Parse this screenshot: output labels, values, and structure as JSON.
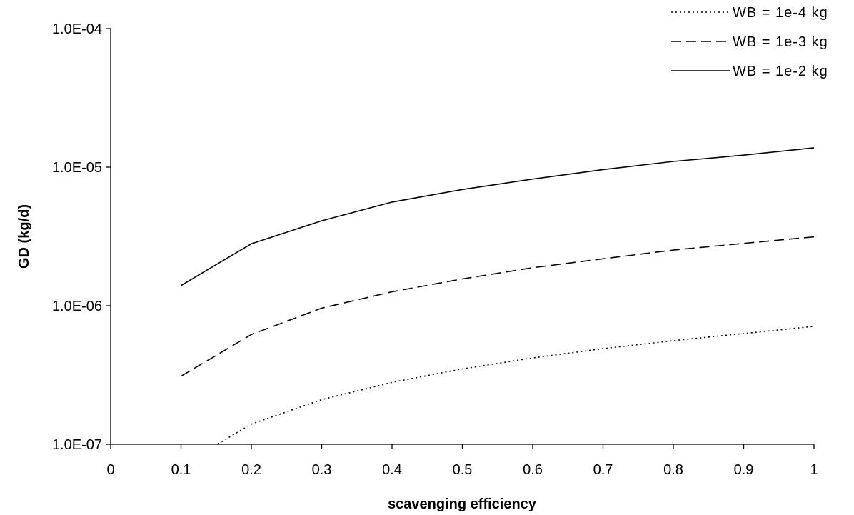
{
  "chart_data": {
    "type": "line",
    "xlabel": "scavenging efficiency",
    "ylabel": "GD (kg/d)",
    "xlim": [
      0,
      1
    ],
    "ylim": [
      1e-07,
      0.0001
    ],
    "y_scale": "log",
    "grid": false,
    "legend_position": "top-right",
    "x_ticks": [
      "0",
      "0.1",
      "0.2",
      "0.3",
      "0.4",
      "0.5",
      "0.6",
      "0.7",
      "0.8",
      "0.9",
      "1"
    ],
    "y_ticks": [
      {
        "value": 1e-07,
        "label": "1.0E-07"
      },
      {
        "value": 1e-06,
        "label": "1.0E-06"
      },
      {
        "value": 1e-05,
        "label": "1.0E-05"
      },
      {
        "value": 0.0001,
        "label": "1.0E-04"
      }
    ],
    "x": [
      0.1,
      0.2,
      0.3,
      0.4,
      0.5,
      0.6,
      0.7,
      0.8,
      0.9,
      1.0
    ],
    "series": [
      {
        "name": "WB = 1e-4 kg",
        "style": "dotted",
        "values": [
          7e-08,
          1.4e-07,
          2.1e-07,
          2.8e-07,
          3.5e-07,
          4.2e-07,
          4.9e-07,
          5.6e-07,
          6.3e-07,
          7.1e-07
        ]
      },
      {
        "name": "WB = 1e-3 kg",
        "style": "dashed",
        "values": [
          3.1e-07,
          6.2e-07,
          9.6e-07,
          1.26e-06,
          1.56e-06,
          1.88e-06,
          2.18e-06,
          2.52e-06,
          2.82e-06,
          3.14e-06
        ]
      },
      {
        "name": "WB = 1e-2 kg",
        "style": "solid",
        "values": [
          1.4e-06,
          2.8e-06,
          4.1e-06,
          5.6e-06,
          6.9e-06,
          8.2e-06,
          9.6e-06,
          1.1e-05,
          1.22e-05,
          1.38e-05
        ]
      }
    ],
    "colors": {
      "line": "#000000",
      "axis": "#000000",
      "background": "#ffffff"
    }
  }
}
